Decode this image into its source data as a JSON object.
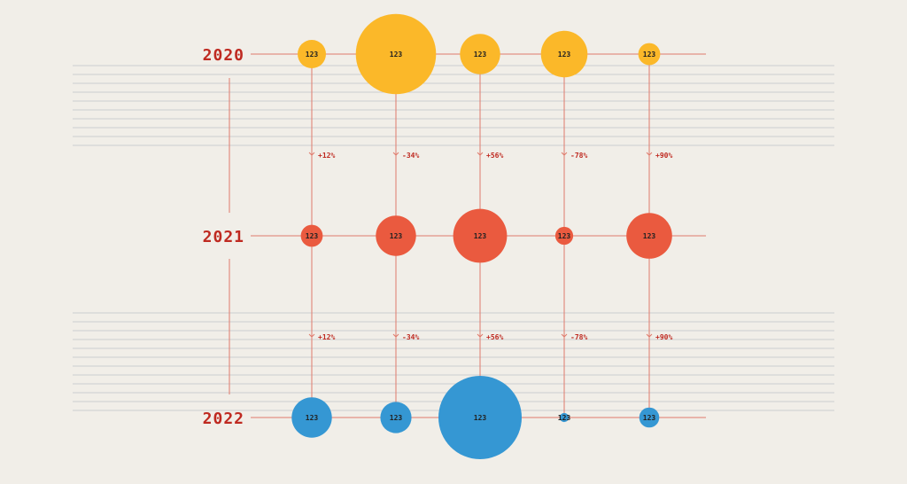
{
  "chart_data": {
    "type": "bubble",
    "title": "",
    "years": [
      "2020",
      "2021",
      "2022"
    ],
    "columns": 5,
    "series": [
      {
        "year": "2020",
        "color": "#fbb829",
        "sizes": [
          10,
          80,
          20,
          27,
          6
        ],
        "labels": [
          "123",
          "123",
          "123",
          "123",
          "123"
        ]
      },
      {
        "year": "2021",
        "color": "#ea5a3f",
        "sizes": [
          6,
          20,
          36,
          4,
          26
        ],
        "labels": [
          "123",
          "123",
          "123",
          "123",
          "123"
        ]
      },
      {
        "year": "2022",
        "color": "#3597d3",
        "sizes": [
          20,
          12,
          86,
          1,
          5
        ],
        "labels": [
          "123",
          "123",
          "123",
          "123",
          "123"
        ]
      }
    ],
    "changes": [
      [
        "+12%",
        "-34%",
        "+56%",
        "-78%",
        "+90%"
      ],
      [
        "+12%",
        "-34%",
        "+56%",
        "-78%",
        "+90%"
      ]
    ],
    "colors": {
      "background": "#f1eee8",
      "connector": "#e07a6b",
      "year_label": "#bf2a21",
      "change_label": "#bf2a21",
      "stripe": "#cbcdd1"
    }
  }
}
